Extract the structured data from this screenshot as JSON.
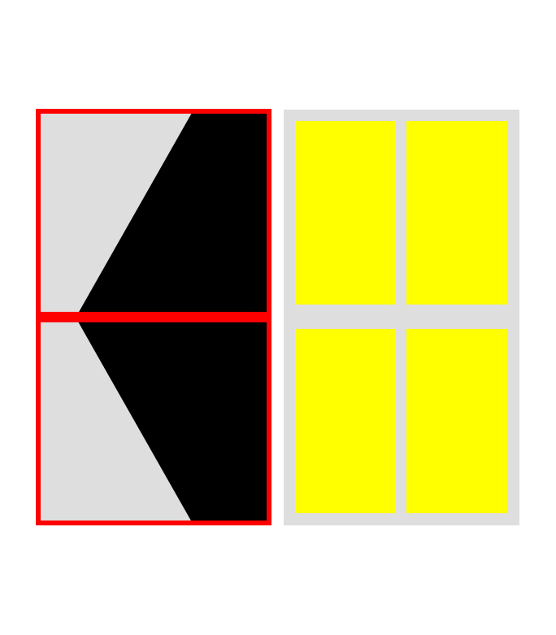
{
  "colors": {
    "background": "#ffffff",
    "panel_fill": "#dedede",
    "frame": "#ff0000",
    "triangle": "#000000",
    "tile": "#ffff00"
  },
  "left_panel": {
    "cells": [
      {
        "shape": "black-wedge-pointing-down-left"
      },
      {
        "shape": "black-wedge-pointing-up-left"
      }
    ]
  },
  "right_panel": {
    "tiles": [
      {
        "row": 1,
        "col": 1
      },
      {
        "row": 1,
        "col": 2
      },
      {
        "row": 2,
        "col": 1
      },
      {
        "row": 2,
        "col": 2
      }
    ]
  }
}
